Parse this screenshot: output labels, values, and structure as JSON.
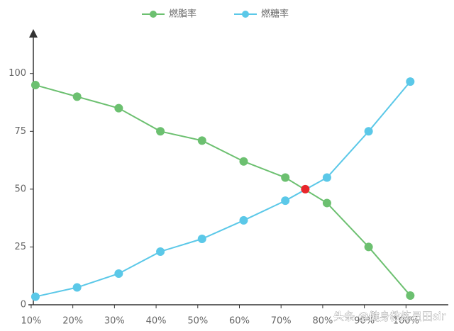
{
  "chart_data": {
    "type": "line",
    "x": [
      10,
      20,
      30,
      40,
      50,
      60,
      70,
      80,
      90,
      100
    ],
    "xlim": [
      9.5,
      108.8
    ],
    "xticks": [
      {
        "value": 10,
        "label": "10%"
      },
      {
        "value": 20,
        "label": "20%"
      },
      {
        "value": 30,
        "label": "30%"
      },
      {
        "value": 40,
        "label": "40%"
      },
      {
        "value": 50,
        "label": "50%"
      },
      {
        "value": 60,
        "label": "60%"
      },
      {
        "value": 70,
        "label": "70%"
      },
      {
        "value": 80,
        "label": "80%"
      },
      {
        "value": 90,
        "label": "90%"
      },
      {
        "value": 100,
        "label": "100%"
      }
    ],
    "ylim": [
      0,
      118
    ],
    "yticks": [
      0,
      25,
      50,
      75,
      100
    ],
    "series": [
      {
        "name": "燃脂率",
        "color": "#6cc070",
        "values": [
          95,
          90,
          85,
          75,
          71,
          62,
          55,
          44,
          25,
          4
        ]
      },
      {
        "name": "燃糖率",
        "color": "#5bc8e8",
        "values": [
          3.5,
          7.5,
          13.5,
          23,
          28.5,
          36.5,
          45,
          55,
          75,
          96.5
        ]
      }
    ],
    "intersection": {
      "x": 74.8,
      "y": 50,
      "color": "#e8262b"
    },
    "watermark": "头条 @健身教练员田sir"
  }
}
